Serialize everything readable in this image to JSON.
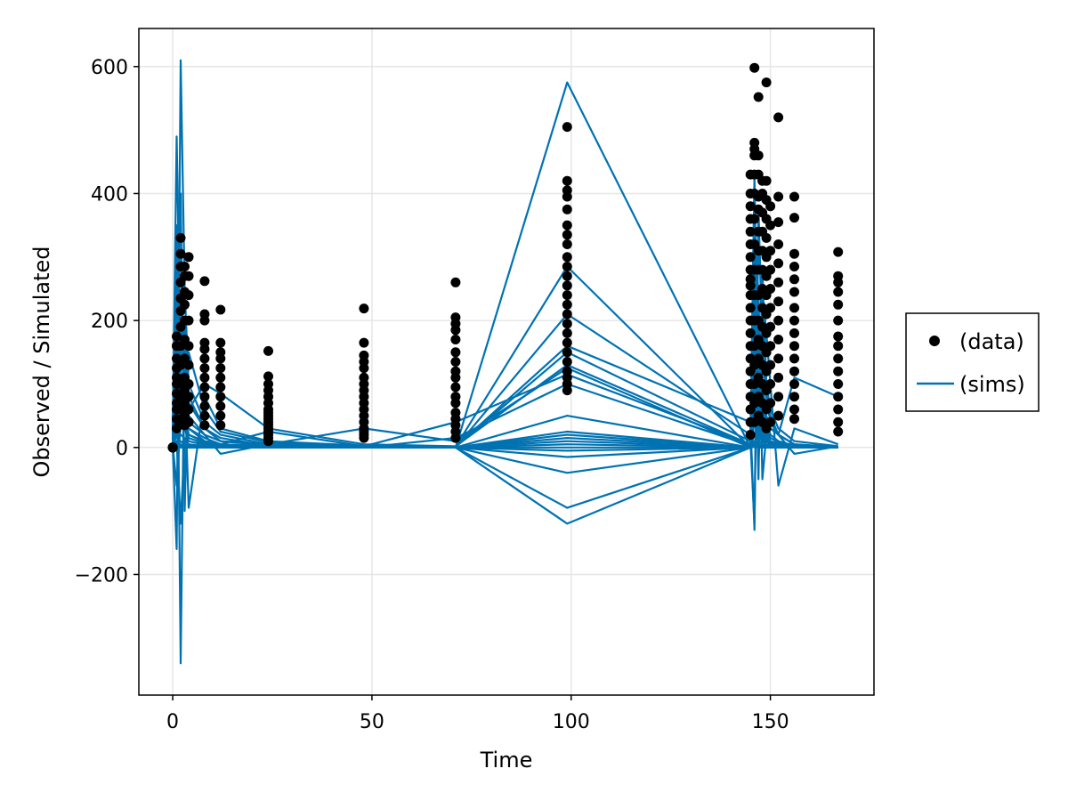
{
  "chart_data": {
    "type": "scatter",
    "xlabel": "Time",
    "ylabel": "Observed / Simulated",
    "xlim": [
      -8.5,
      176
    ],
    "ylim": [
      -390,
      660
    ],
    "xticks": [
      0,
      50,
      100,
      150
    ],
    "yticks": [
      -200,
      0,
      200,
      400,
      600
    ],
    "grid": true,
    "legend_position": "right",
    "legend": [
      {
        "label": "(data)",
        "marker": "dot"
      },
      {
        "label": "(sims)",
        "marker": "line"
      }
    ],
    "colors": {
      "data": "#000000",
      "sims": "#0072b2",
      "grid": "#e6e6e6"
    },
    "times": [
      0,
      1,
      2,
      3,
      4,
      8,
      12,
      24,
      48,
      71,
      99,
      145,
      146,
      147,
      148,
      149,
      150,
      152,
      156,
      167
    ],
    "data_series": {
      "name": "(data)",
      "groups": [
        {
          "x": 0,
          "y": [
            0,
            0,
            0,
            0,
            0,
            0
          ]
        },
        {
          "x": 1,
          "y": [
            30,
            45,
            60,
            70,
            85,
            100,
            110,
            125,
            140,
            160,
            175
          ]
        },
        {
          "x": 2,
          "y": [
            40,
            60,
            80,
            100,
            130,
            160,
            190,
            215,
            235,
            260,
            285,
            305,
            330
          ]
        },
        {
          "x": 3,
          "y": [
            35,
            50,
            70,
            90,
            110,
            140,
            170,
            200,
            225,
            245,
            270,
            285
          ]
        },
        {
          "x": 4,
          "y": [
            40,
            60,
            80,
            100,
            130,
            160,
            200,
            240,
            270,
            300
          ]
        },
        {
          "x": 8,
          "y": [
            35,
            50,
            65,
            80,
            95,
            110,
            125,
            140,
            155,
            165,
            200,
            210,
            262
          ]
        },
        {
          "x": 12,
          "y": [
            35,
            50,
            65,
            80,
            95,
            110,
            125,
            140,
            150,
            165,
            217
          ]
        },
        {
          "x": 24,
          "y": [
            10,
            15,
            20,
            25,
            30,
            35,
            40,
            45,
            50,
            55,
            60,
            70,
            80,
            90,
            100,
            112,
            152
          ]
        },
        {
          "x": 48,
          "y": [
            15,
            20,
            25,
            30,
            40,
            50,
            60,
            70,
            80,
            90,
            100,
            110,
            125,
            135,
            145,
            165,
            219
          ]
        },
        {
          "x": 71,
          "y": [
            15,
            25,
            35,
            45,
            55,
            70,
            80,
            95,
            110,
            120,
            135,
            150,
            170,
            185,
            195,
            205,
            260
          ]
        },
        {
          "x": 99,
          "y": [
            90,
            100,
            110,
            120,
            135,
            150,
            165,
            180,
            195,
            210,
            225,
            240,
            255,
            270,
            285,
            300,
            320,
            335,
            350,
            375,
            395,
            405,
            420,
            505
          ]
        },
        {
          "x": 145,
          "y": [
            20,
            40,
            60,
            80,
            100,
            120,
            140,
            160,
            180,
            200,
            220,
            240,
            255,
            265,
            280,
            300,
            320,
            340,
            360,
            380,
            400,
            430
          ]
        },
        {
          "x": 146,
          "y": [
            40,
            70,
            100,
            130,
            160,
            200,
            240,
            280,
            320,
            360,
            400,
            430,
            460,
            470,
            480,
            598
          ]
        },
        {
          "x": 147,
          "y": [
            50,
            80,
            110,
            140,
            170,
            200,
            240,
            280,
            310,
            340,
            375,
            395,
            430,
            460,
            552
          ]
        },
        {
          "x": 148,
          "y": [
            40,
            70,
            100,
            130,
            160,
            190,
            220,
            250,
            280,
            310,
            340,
            370,
            400,
            420
          ]
        },
        {
          "x": 149,
          "y": [
            30,
            60,
            90,
            120,
            150,
            180,
            210,
            240,
            270,
            300,
            330,
            360,
            390,
            420,
            575
          ]
        },
        {
          "x": 150,
          "y": [
            40,
            70,
            100,
            130,
            160,
            190,
            220,
            250,
            280,
            310,
            350,
            380
          ]
        },
        {
          "x": 152,
          "y": [
            50,
            80,
            110,
            140,
            170,
            200,
            230,
            260,
            290,
            320,
            355,
            395,
            520
          ]
        },
        {
          "x": 156,
          "y": [
            45,
            60,
            80,
            100,
            120,
            140,
            160,
            180,
            200,
            220,
            245,
            265,
            285,
            305,
            362,
            395
          ]
        },
        {
          "x": 167,
          "y": [
            25,
            40,
            60,
            80,
            100,
            120,
            140,
            160,
            175,
            200,
            225,
            245,
            260,
            270,
            308
          ]
        }
      ]
    },
    "sims": [
      {
        "y": [
          30,
          490,
          120,
          60,
          20,
          10,
          5,
          2,
          1,
          0,
          575,
          0,
          430,
          -20,
          100,
          50,
          30,
          20,
          5,
          0
        ]
      },
      {
        "y": [
          0,
          -160,
          610,
          250,
          100,
          40,
          20,
          5,
          2,
          1,
          285,
          0,
          300,
          250,
          -50,
          20,
          10,
          5,
          2,
          0
        ]
      },
      {
        "y": [
          20,
          300,
          -340,
          200,
          80,
          30,
          10,
          3,
          1,
          0,
          210,
          20,
          420,
          50,
          30,
          10,
          5,
          2,
          1,
          0
        ]
      },
      {
        "y": [
          10,
          150,
          400,
          -100,
          150,
          60,
          25,
          8,
          2,
          1,
          160,
          40,
          -130,
          350,
          200,
          100,
          60,
          30,
          10,
          2
        ]
      },
      {
        "y": [
          40,
          250,
          300,
          100,
          -95,
          80,
          30,
          10,
          3,
          1,
          150,
          10,
          -120,
          380,
          150,
          80,
          40,
          20,
          5,
          1
        ]
      },
      {
        "y": [
          5,
          100,
          200,
          180,
          60,
          100,
          85,
          30,
          5,
          2,
          130,
          5,
          250,
          -50,
          280,
          100,
          50,
          20,
          110,
          80
        ]
      },
      {
        "y": [
          15,
          200,
          220,
          90,
          40,
          20,
          10,
          5,
          30,
          10,
          125,
          0,
          200,
          300,
          250,
          180,
          100,
          -60,
          30,
          5
        ]
      },
      {
        "y": [
          8,
          120,
          90,
          60,
          30,
          15,
          5,
          25,
          2,
          40,
          115,
          5,
          380,
          100,
          60,
          30,
          15,
          8,
          3,
          1
        ]
      },
      {
        "y": [
          12,
          80,
          150,
          100,
          50,
          20,
          -10,
          5,
          0,
          15,
          100,
          3,
          350,
          200,
          100,
          80,
          40,
          20,
          -10,
          2
        ]
      },
      {
        "y": [
          25,
          350,
          180,
          140,
          70,
          30,
          15,
          3,
          1,
          0,
          50,
          0,
          300,
          150,
          90,
          40,
          20,
          10,
          3,
          0
        ]
      },
      {
        "y": [
          10,
          60,
          100,
          70,
          30,
          10,
          5,
          2,
          1,
          0,
          25,
          0,
          200,
          100,
          50,
          25,
          10,
          5,
          2,
          0
        ]
      },
      {
        "y": [
          5,
          40,
          80,
          50,
          20,
          8,
          4,
          1,
          0,
          0,
          20,
          0,
          150,
          80,
          40,
          20,
          8,
          4,
          1,
          0
        ]
      },
      {
        "y": [
          0,
          20,
          60,
          40,
          15,
          6,
          3,
          1,
          0,
          0,
          15,
          0,
          100,
          60,
          30,
          15,
          6,
          3,
          1,
          0
        ]
      },
      {
        "y": [
          3,
          -60,
          40,
          30,
          10,
          4,
          2,
          0,
          0,
          0,
          10,
          0,
          80,
          40,
          20,
          10,
          4,
          2,
          0,
          0
        ]
      },
      {
        "y": [
          2,
          30,
          20,
          15,
          5,
          2,
          1,
          0,
          0,
          0,
          5,
          0,
          60,
          30,
          15,
          5,
          2,
          1,
          0,
          0
        ]
      },
      {
        "y": [
          1,
          10,
          -120,
          10,
          3,
          1,
          0,
          0,
          0,
          0,
          0,
          0,
          40,
          20,
          10,
          3,
          1,
          0,
          0,
          0
        ]
      },
      {
        "y": [
          0,
          5,
          10,
          5,
          2,
          1,
          0,
          0,
          0,
          0,
          -5,
          0,
          20,
          10,
          5,
          2,
          1,
          0,
          0,
          0
        ]
      },
      {
        "y": [
          0,
          2,
          5,
          2,
          1,
          0,
          0,
          0,
          0,
          0,
          -15,
          0,
          10,
          5,
          2,
          1,
          0,
          0,
          0,
          0
        ]
      },
      {
        "y": [
          0,
          1,
          2,
          1,
          0,
          0,
          0,
          0,
          0,
          0,
          -40,
          0,
          5,
          2,
          1,
          0,
          0,
          0,
          0,
          0
        ]
      },
      {
        "y": [
          0,
          0,
          1,
          0,
          0,
          0,
          0,
          0,
          0,
          0,
          -95,
          0,
          2,
          1,
          0,
          0,
          0,
          0,
          0,
          0
        ]
      },
      {
        "y": [
          0,
          0,
          0,
          0,
          0,
          0,
          0,
          0,
          0,
          0,
          -120,
          0,
          1,
          0,
          0,
          0,
          0,
          0,
          0,
          0
        ]
      }
    ]
  }
}
